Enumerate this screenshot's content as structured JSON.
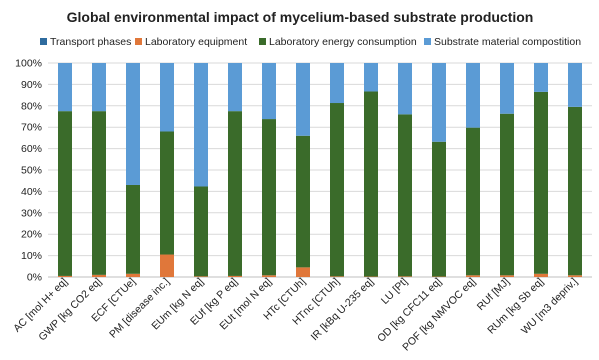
{
  "chart_data": {
    "type": "bar",
    "stacked": true,
    "percent_stacked": true,
    "title": "Global environmental impact of mycelium-based substrate production",
    "categories": [
      "AC [mol H+ eq]",
      "GWP [kg CO2 eq]",
      "ECF [CTUe]",
      "PM [disease inc.]",
      "EUm [kg N eq]",
      "EUf [kg P eq]",
      "EUt [mol N eq]",
      "HTc [CTUh]",
      "HTnc [CTUh]",
      "IR [kBq U-235 eq]",
      "LU [Pt]",
      "OD [kg CFC11 eq]",
      "POF [kg NMVOC eq]",
      "RUf [MJ]",
      "RUm [kg Sb eq]",
      "WU [m3 depriv.]"
    ],
    "series": [
      {
        "name": "Transport phases",
        "color": "#2e6b9e",
        "values": [
          0,
          0,
          0,
          0,
          0,
          0,
          0,
          0,
          0,
          0,
          0,
          0,
          0,
          0,
          0,
          0
        ]
      },
      {
        "name": "Laboratory equipment",
        "color": "#e0773a",
        "values": [
          0.5,
          1,
          1.5,
          10.5,
          0.3,
          0.5,
          0.8,
          4.5,
          0.3,
          0.2,
          0.3,
          0.2,
          0.8,
          0.8,
          1.5,
          0.8
        ]
      },
      {
        "name": "Laboratory energy consumption",
        "color": "#3a6b2a",
        "values": [
          77,
          76.5,
          41.5,
          57.5,
          42,
          77,
          73,
          61.5,
          81,
          86.5,
          75.7,
          63,
          69,
          75.5,
          85,
          78.7
        ]
      },
      {
        "name": "Substrate material compostition",
        "color": "#5b9bd5",
        "values": [
          22.5,
          22.5,
          57,
          32,
          57.7,
          22.5,
          26.2,
          34,
          18.7,
          13.3,
          24,
          36.8,
          30.2,
          23.7,
          13.5,
          20.5
        ]
      }
    ],
    "y_ticks": [
      "0%",
      "10%",
      "20%",
      "30%",
      "40%",
      "50%",
      "60%",
      "70%",
      "80%",
      "90%",
      "100%"
    ],
    "ylim": [
      0,
      100
    ],
    "grid": true,
    "legend_position": "top"
  }
}
